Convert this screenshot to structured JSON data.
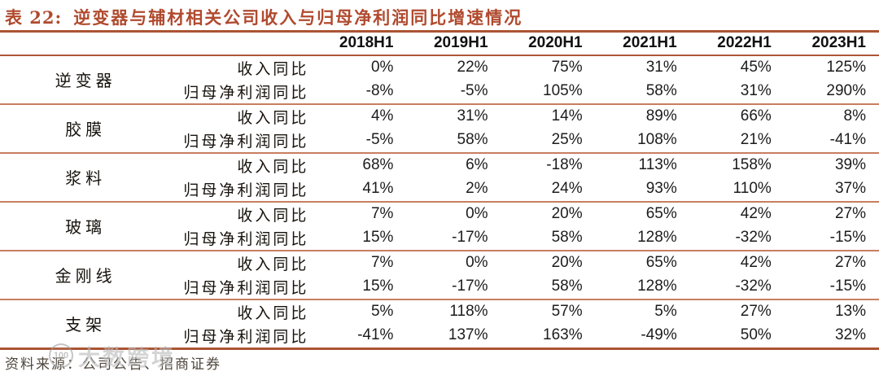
{
  "header": {
    "table_label": "表 22:",
    "title": "逆变器与辅材相关公司收入与归母净利润同比增速情况"
  },
  "table": {
    "columns": [
      "2018H1",
      "2019H1",
      "2020H1",
      "2021H1",
      "2022H1",
      "2023H1"
    ],
    "metric_labels": [
      "收入同比",
      "归母净利润同比"
    ],
    "groups": [
      {
        "category": "逆变器",
        "revenue_yoy": [
          "0%",
          "22%",
          "75%",
          "31%",
          "45%",
          "125%"
        ],
        "net_profit_yoy": [
          "-8%",
          "-5%",
          "105%",
          "58%",
          "31%",
          "290%"
        ]
      },
      {
        "category": "胶膜",
        "revenue_yoy": [
          "4%",
          "31%",
          "14%",
          "89%",
          "66%",
          "8%"
        ],
        "net_profit_yoy": [
          "-5%",
          "58%",
          "25%",
          "108%",
          "21%",
          "-41%"
        ]
      },
      {
        "category": "浆料",
        "revenue_yoy": [
          "68%",
          "6%",
          "-18%",
          "113%",
          "158%",
          "39%"
        ],
        "net_profit_yoy": [
          "41%",
          "2%",
          "24%",
          "93%",
          "110%",
          "37%"
        ]
      },
      {
        "category": "玻璃",
        "revenue_yoy": [
          "7%",
          "0%",
          "20%",
          "65%",
          "42%",
          "27%"
        ],
        "net_profit_yoy": [
          "15%",
          "-17%",
          "58%",
          "128%",
          "-32%",
          "-15%"
        ]
      },
      {
        "category": "金刚线",
        "revenue_yoy": [
          "7%",
          "0%",
          "20%",
          "65%",
          "42%",
          "27%"
        ],
        "net_profit_yoy": [
          "15%",
          "-17%",
          "58%",
          "128%",
          "-32%",
          "-15%"
        ]
      },
      {
        "category": "支架",
        "revenue_yoy": [
          "5%",
          "118%",
          "57%",
          "5%",
          "27%",
          "13%"
        ],
        "net_profit_yoy": [
          "-41%",
          "137%",
          "163%",
          "-49%",
          "50%",
          "32%"
        ]
      }
    ]
  },
  "footer": {
    "source": "资料来源：公司公告、招商证券"
  },
  "watermark": {
    "logo_text": "100",
    "text": "大数跨境"
  },
  "colors": {
    "accent_red": "#b04a2e",
    "rule_heavy": "#aa5433",
    "rule_light": "#c87e60"
  }
}
